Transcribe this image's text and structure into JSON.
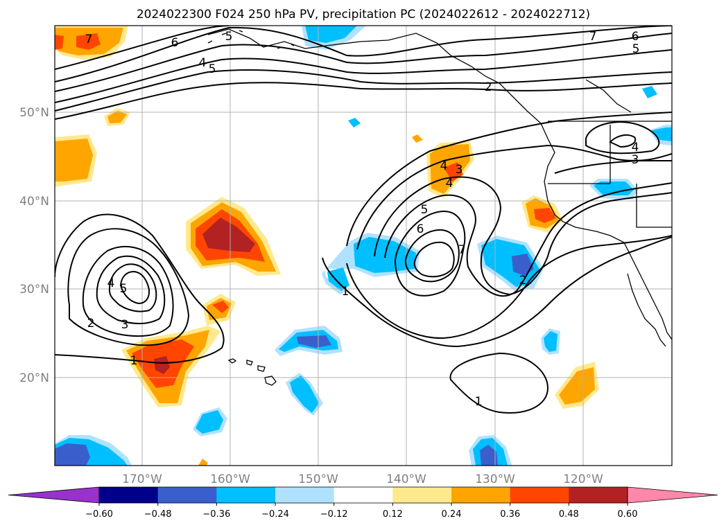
{
  "title": "2024022300 F024 250 hPa PV, precipitation PC (2024022612 - 2024022712)",
  "axes": {
    "lat_labels": [
      "50°N",
      "40°N",
      "30°N",
      "20°N"
    ],
    "lon_labels": [
      "170°W",
      "160°W",
      "150°W",
      "140°W",
      "130°W",
      "120°W"
    ]
  },
  "contour_labels": [
    "7",
    "6",
    "5",
    "4",
    "5",
    "7",
    "6",
    "5",
    "4",
    "2",
    "4",
    "3",
    "3",
    "4",
    "5",
    "6",
    "7",
    "5",
    "4",
    "3",
    "2",
    "1",
    "1",
    "2",
    "1"
  ],
  "colorbar": {
    "ticks": [
      "−0.60",
      "−0.48",
      "−0.36",
      "−0.24",
      "−0.12",
      "0.12",
      "0.24",
      "0.36",
      "0.48",
      "0.60"
    ],
    "colors": [
      "#9932CC",
      "#00008B",
      "#3A5FCD",
      "#00BFFF",
      "#B0E2FF",
      "#FFFFFF",
      "#FFE98C",
      "#FFA500",
      "#FF4500",
      "#B22222",
      "#FF88AA"
    ]
  },
  "colors": {
    "land_outline": "#000000",
    "grid": "#b0b0b0",
    "contour": "#000000",
    "fill_yellow": "#FFE98C",
    "fill_orange": "#FFA500",
    "fill_redorange": "#FF4500",
    "fill_darkred": "#B22222",
    "fill_lightblue": "#B0E2FF",
    "fill_blue": "#00BFFF",
    "fill_royal": "#3A5FCD"
  }
}
